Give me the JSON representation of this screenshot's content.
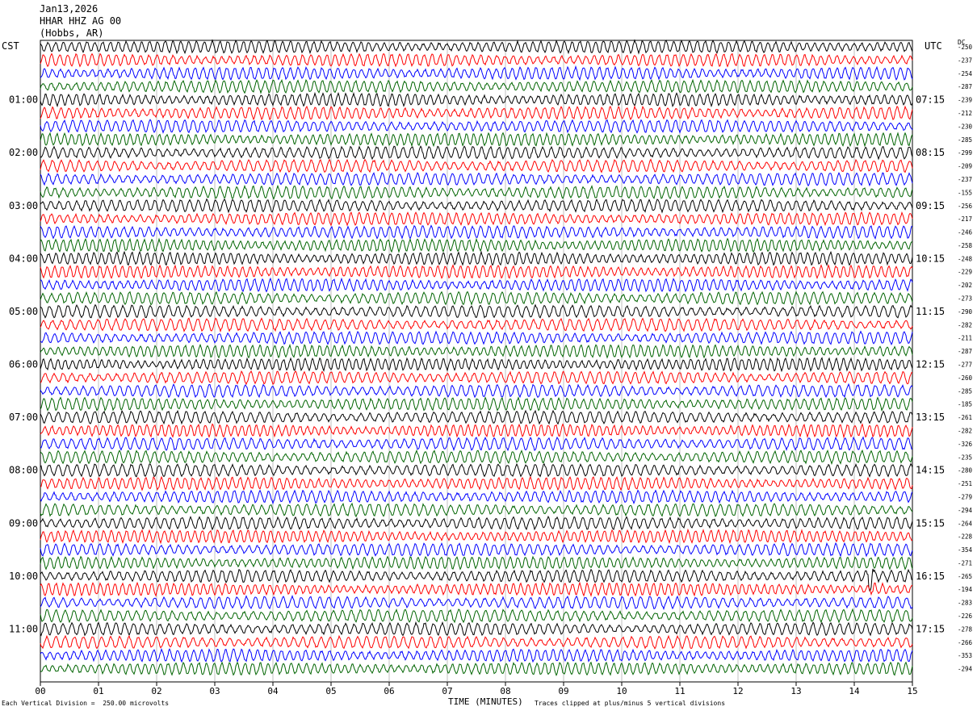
{
  "header": {
    "date": "Jan13,2026",
    "station": "HHAR HHZ AG 00",
    "location": "(Hobbs, AR)"
  },
  "left_zone": "CST",
  "right_zone": "UTC",
  "dc_label": "DC",
  "footer": {
    "scale": "Each Vertical Division =  250.00 microvolts",
    "clip": "Traces clipped at plus/minus 5 vertical divisions"
  },
  "chart_data": {
    "type": "line",
    "title": "",
    "xlabel": "TIME (MINUTES)",
    "xlim": [
      0,
      15
    ],
    "x_ticks": [
      "00",
      "01",
      "02",
      "03",
      "04",
      "05",
      "06",
      "07",
      "08",
      "09",
      "10",
      "11",
      "12",
      "13",
      "14",
      "15"
    ],
    "left_time_labels": [
      "01:00",
      "02:00",
      "03:00",
      "04:00",
      "05:00",
      "06:00",
      "07:00",
      "08:00",
      "09:00",
      "10:00",
      "11:00"
    ],
    "right_time_labels": [
      "07:15",
      "08:15",
      "09:15",
      "10:15",
      "11:15",
      "12:15",
      "13:15",
      "14:15",
      "15:15",
      "16:15",
      "17:15"
    ],
    "trace_colors": [
      "#000000",
      "#ff0000",
      "#0000ff",
      "#006400"
    ],
    "trace_count": 48,
    "dc_offsets": [
      "-250",
      "-237",
      "-254",
      "-287",
      "-239",
      "-212",
      "-230",
      "-285",
      "-299",
      "-209",
      "-237",
      "-155",
      "-256",
      "-217",
      "-246",
      "-258",
      "-248",
      "-229",
      "-202",
      "-273",
      "-290",
      "-282",
      "-211",
      "-287",
      "-277",
      "-260",
      "-285",
      "-185",
      "-261",
      "-282",
      "-326",
      "-235",
      "-280",
      "-251",
      "-279",
      "-294",
      "-264",
      "-228",
      "-354",
      "-271",
      "-265",
      "-194",
      "-283",
      "-226",
      "-278",
      "-266",
      "-353",
      "-294"
    ]
  }
}
